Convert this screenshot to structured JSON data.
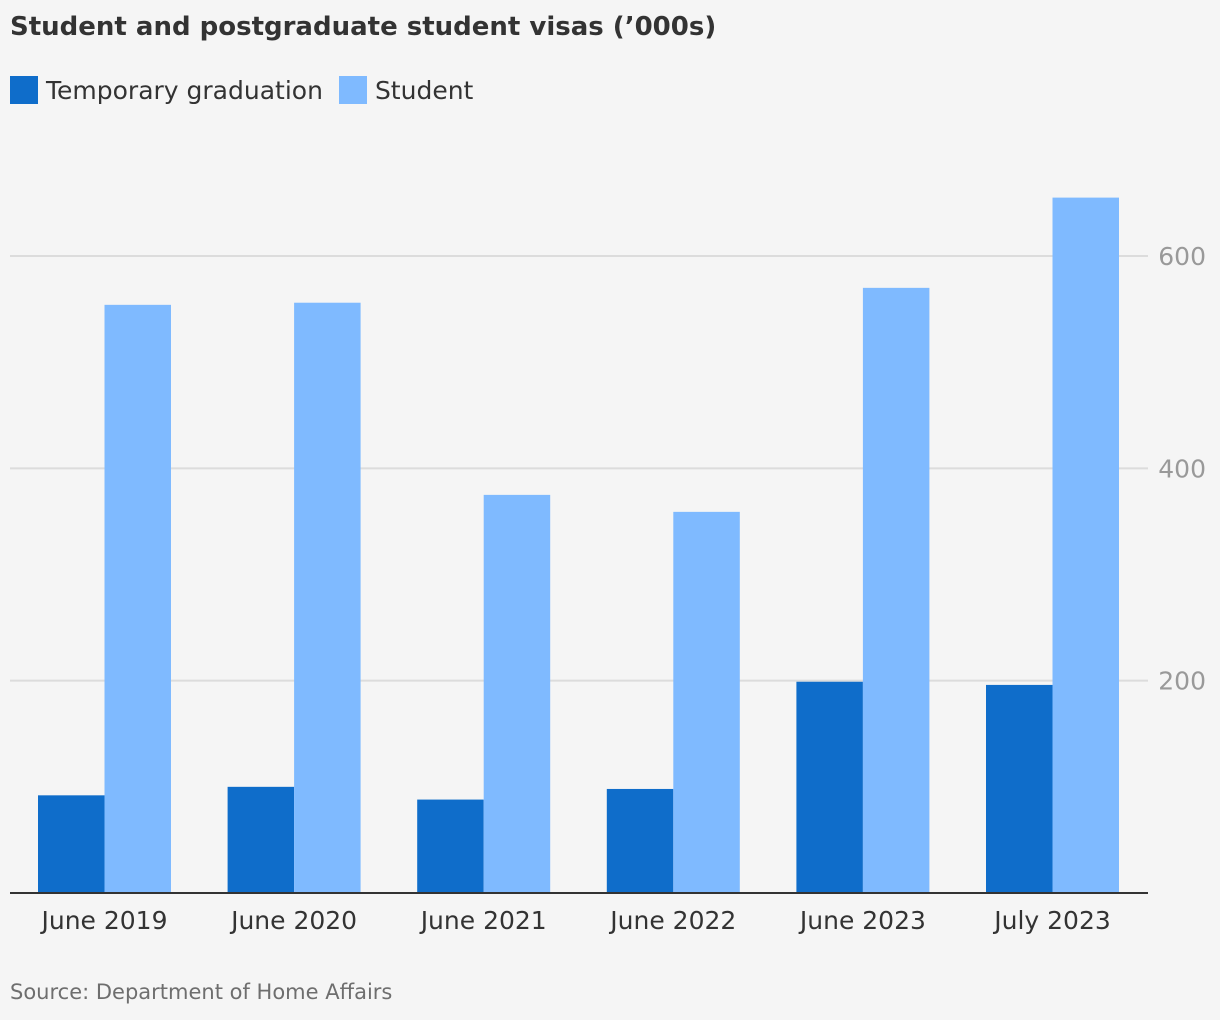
{
  "colors": {
    "temporary_graduation": "#0f6dca",
    "student": "#7fbaff",
    "grid": "#dcdcdc",
    "axis": "#333333",
    "tick_label": "#999999"
  },
  "chart_data": {
    "type": "bar",
    "title": "Student and postgraduate student visas (’000s)",
    "categories": [
      "June 2019",
      "June 2020",
      "June 2021",
      "June 2022",
      "June 2023",
      "July 2023"
    ],
    "series": [
      {
        "name": "Temporary graduation",
        "values": [
          92,
          100,
          88,
          98,
          199,
          196
        ]
      },
      {
        "name": "Student",
        "values": [
          554,
          556,
          375,
          359,
          570,
          655
        ]
      }
    ],
    "y_ticks": [
      "200",
      "400",
      "600"
    ],
    "ylim": [
      0,
      680
    ],
    "y_axis_position": "right",
    "grid": true,
    "legend_placement": "top-left",
    "xlabel": "",
    "ylabel": ""
  },
  "source": "Source: Department of Home Affairs"
}
